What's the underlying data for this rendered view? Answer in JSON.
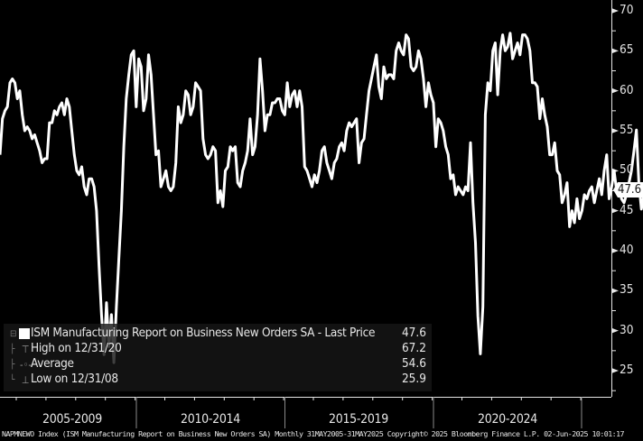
{
  "chart_data": {
    "type": "line",
    "title": "ISM Manufacturing Report on Business New Orders SA",
    "ticker": "NAPMNEWO Index",
    "frequency": "Monthly",
    "range": "31MAY2005-31MAY2025",
    "xlabel": "",
    "ylabel": "",
    "ylim": [
      22,
      71
    ],
    "y_ticks": [
      25,
      30,
      35,
      40,
      45,
      50,
      55,
      60,
      65,
      70
    ],
    "x_groups": [
      "2005-2009",
      "2010-2014",
      "2015-2019",
      "2020-2024"
    ],
    "grid": false,
    "legend_position": "bottom-left",
    "series": [
      {
        "name": "ISM Manufacturing Report on Business New Orders SA - Last Price",
        "color": "#ffffff",
        "start": "2005-05",
        "values": [
          52,
          56.5,
          57.5,
          58,
          61,
          61.5,
          61,
          59,
          60,
          57,
          55,
          55.5,
          55,
          54,
          54.5,
          53.5,
          52.5,
          51,
          51.5,
          51.5,
          56,
          56,
          57.5,
          57,
          58,
          58.5,
          57,
          59,
          58,
          55,
          52,
          50,
          49.5,
          50.5,
          48,
          47,
          49,
          49,
          48,
          45,
          38,
          32,
          27,
          33.5,
          28,
          32,
          26,
          33,
          39,
          45,
          53,
          59,
          62,
          64.5,
          65,
          58,
          64,
          63,
          57.5,
          59,
          64.5,
          62,
          57,
          52,
          52.5,
          48,
          49,
          50,
          48,
          47.5,
          48,
          51,
          58,
          56,
          57,
          60,
          59.5,
          57,
          58,
          61,
          60.5,
          60,
          54,
          52,
          51.5,
          52,
          53,
          52.5,
          46,
          47.5,
          45.5,
          50,
          50.5,
          53,
          52.5,
          53,
          48.5,
          48,
          50,
          51,
          52.5,
          56.5,
          52,
          53,
          57,
          64,
          60,
          55,
          57,
          57,
          58.5,
          58.5,
          59,
          59,
          57.5,
          57,
          61,
          58,
          59.5,
          60,
          58,
          60,
          58,
          50.5,
          50,
          49,
          48,
          49.5,
          48.5,
          50,
          52.5,
          53,
          51,
          50,
          49,
          51,
          51.5,
          53,
          53.5,
          52.5,
          55,
          56,
          55.5,
          56,
          56.5,
          51,
          53.5,
          54,
          57,
          60,
          61.5,
          63,
          64.5,
          60.5,
          59,
          63,
          61.5,
          62,
          62,
          61.5,
          65,
          66,
          65,
          64.5,
          67,
          66.5,
          63,
          62.5,
          63,
          65,
          64,
          61.5,
          58,
          61,
          59.5,
          58.5,
          53,
          56.5,
          56,
          55,
          53,
          52,
          49,
          49.5,
          47,
          48,
          47.5,
          47,
          48,
          47.5,
          53.5,
          46,
          41,
          31.8,
          27.1,
          33,
          57,
          61,
          60,
          65,
          66,
          59.5,
          65,
          67,
          65,
          65.5,
          67.2,
          64,
          65,
          66,
          64.5,
          67,
          67,
          66.5,
          65,
          61,
          61,
          60.5,
          56.5,
          59,
          57,
          55.5,
          52,
          52,
          53.5,
          50,
          49.5,
          46,
          47,
          48.5,
          43,
          45,
          43.5,
          46.5,
          44,
          45,
          47,
          46.5,
          47.5,
          48,
          46,
          47.5,
          49,
          47,
          50,
          52,
          46.5,
          48,
          50,
          47.5,
          48,
          46.5,
          46,
          47,
          48.5,
          50,
          52.5,
          55.1,
          48.5,
          45.2,
          47,
          47.6
        ]
      }
    ],
    "high": {
      "label": "High on 12/31/20",
      "value": 67.2
    },
    "average": {
      "label": "Average",
      "value": 54.6
    },
    "low": {
      "label": "Low on 12/31/08",
      "value": 25.9
    },
    "last_price": 47.6
  },
  "legend": {
    "series_label": "ISM Manufacturing Report on Business New Orders SA - Last Price",
    "series_value": "47.6",
    "high_label": "High on 12/31/20",
    "high_value": "67.2",
    "avg_label": "Average",
    "avg_value": "54.6",
    "low_label": "Low on 12/31/08",
    "low_value": "25.9"
  },
  "axis": {
    "last_tag": "47.6",
    "y_labels": [
      "70",
      "65",
      "60",
      "55",
      "50",
      "45",
      "40",
      "35",
      "30",
      "25"
    ],
    "x_labels": [
      "2005-2009",
      "2010-2014",
      "2015-2019",
      "2020-2024"
    ]
  },
  "footer": {
    "text": "NAPMNEWO Index (ISM Manufacturing Report on Business New Orders SA)  Monthly 31MAY2005-31MAY2025  Copyright© 2025 Bloomberg Finance L.P.  02-Jun-2025 10:01:17"
  }
}
